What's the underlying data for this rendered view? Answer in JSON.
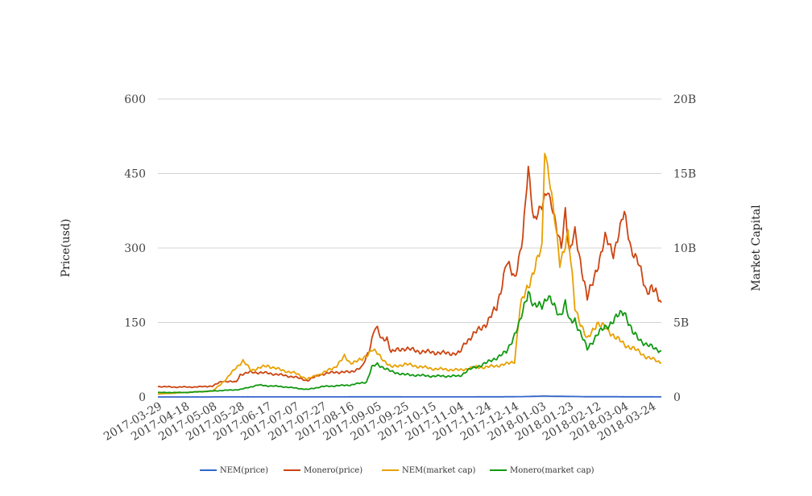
{
  "chart_data": {
    "type": "line",
    "ylabel": "Price(usd)",
    "y2label": "Market Capital",
    "ylim": [
      0,
      600
    ],
    "y2lim": [
      0,
      20000000000
    ],
    "yticks": [
      "0",
      "150",
      "300",
      "450",
      "600"
    ],
    "y2ticks": [
      "0",
      "5B",
      "10B",
      "15B",
      "20B"
    ],
    "xlim": [
      "2017-03-29",
      "2018-03-31"
    ],
    "xticks": [
      "2017-03-29",
      "2017-04-18",
      "2017-05-08",
      "2017-05-28",
      "2017-06-17",
      "2017-07-07",
      "2017-07-27",
      "2017-08-16",
      "2017-09-05",
      "2017-09-25",
      "2017-10-15",
      "2017-11-04",
      "2017-11-24",
      "2017-12-14",
      "2018-01-03",
      "2018-01-23",
      "2018-02-12",
      "2018-03-04",
      "2018-03-24"
    ],
    "grid": true,
    "legend_position": "bottom",
    "series": [
      {
        "name": "NEM(price)",
        "color": "#3366cc",
        "axis": "left",
        "points": [
          [
            "2017-03-29",
            0.01
          ],
          [
            "2017-05-01",
            0.02
          ],
          [
            "2017-05-20",
            0.2
          ],
          [
            "2017-06-01",
            0.25
          ],
          [
            "2017-07-01",
            0.18
          ],
          [
            "2017-08-01",
            0.2
          ],
          [
            "2017-08-31",
            0.3
          ],
          [
            "2017-09-30",
            0.22
          ],
          [
            "2017-11-01",
            0.18
          ],
          [
            "2017-12-01",
            0.3
          ],
          [
            "2017-12-20",
            0.7
          ],
          [
            "2018-01-04",
            1.8
          ],
          [
            "2018-01-12",
            1.4
          ],
          [
            "2018-01-20",
            1.2
          ],
          [
            "2018-02-05",
            0.5
          ],
          [
            "2018-02-25",
            0.45
          ],
          [
            "2018-03-15",
            0.3
          ],
          [
            "2018-03-31",
            0.22
          ]
        ]
      },
      {
        "name": "Monero(price)",
        "color": "#cc4411",
        "axis": "left",
        "points": [
          [
            "2017-03-29",
            21
          ],
          [
            "2017-04-10",
            20
          ],
          [
            "2017-04-25",
            20
          ],
          [
            "2017-05-08",
            22
          ],
          [
            "2017-05-15",
            32
          ],
          [
            "2017-05-25",
            30
          ],
          [
            "2017-05-28",
            45
          ],
          [
            "2017-06-05",
            50
          ],
          [
            "2017-06-17",
            48
          ],
          [
            "2017-06-25",
            45
          ],
          [
            "2017-07-07",
            40
          ],
          [
            "2017-07-16",
            33
          ],
          [
            "2017-07-25",
            45
          ],
          [
            "2017-08-05",
            50
          ],
          [
            "2017-08-16",
            50
          ],
          [
            "2017-08-25",
            60
          ],
          [
            "2017-08-30",
            95
          ],
          [
            "2017-09-03",
            140
          ],
          [
            "2017-09-05",
            135
          ],
          [
            "2017-09-08",
            115
          ],
          [
            "2017-09-12",
            120
          ],
          [
            "2017-09-15",
            90
          ],
          [
            "2017-09-20",
            95
          ],
          [
            "2017-09-25",
            98
          ],
          [
            "2017-10-05",
            92
          ],
          [
            "2017-10-15",
            90
          ],
          [
            "2017-10-25",
            88
          ],
          [
            "2017-11-04",
            88
          ],
          [
            "2017-11-08",
            110
          ],
          [
            "2017-11-15",
            128
          ],
          [
            "2017-11-24",
            150
          ],
          [
            "2017-12-01",
            180
          ],
          [
            "2017-12-08",
            270
          ],
          [
            "2017-12-14",
            240
          ],
          [
            "2017-12-20",
            320
          ],
          [
            "2017-12-24",
            460
          ],
          [
            "2017-12-28",
            360
          ],
          [
            "2018-01-03",
            380
          ],
          [
            "2018-01-07",
            420
          ],
          [
            "2018-01-10",
            390
          ],
          [
            "2018-01-14",
            330
          ],
          [
            "2018-01-17",
            300
          ],
          [
            "2018-01-20",
            380
          ],
          [
            "2018-01-23",
            290
          ],
          [
            "2018-01-27",
            330
          ],
          [
            "2018-02-01",
            260
          ],
          [
            "2018-02-05",
            200
          ],
          [
            "2018-02-08",
            220
          ],
          [
            "2018-02-12",
            260
          ],
          [
            "2018-02-18",
            320
          ],
          [
            "2018-02-24",
            290
          ],
          [
            "2018-03-04",
            370
          ],
          [
            "2018-03-09",
            300
          ],
          [
            "2018-03-14",
            270
          ],
          [
            "2018-03-20",
            215
          ],
          [
            "2018-03-24",
            220
          ],
          [
            "2018-03-31",
            190
          ]
        ]
      },
      {
        "name": "NEM(market cap)",
        "color": "#e8a000",
        "axis": "right",
        "points": [
          [
            "2017-03-29",
            200000000
          ],
          [
            "2017-04-18",
            300000000
          ],
          [
            "2017-05-08",
            400000000
          ],
          [
            "2017-05-18",
            1200000000
          ],
          [
            "2017-05-25",
            2000000000
          ],
          [
            "2017-05-30",
            2400000000
          ],
          [
            "2017-06-05",
            1800000000
          ],
          [
            "2017-06-17",
            2100000000
          ],
          [
            "2017-06-27",
            1800000000
          ],
          [
            "2017-07-07",
            1600000000
          ],
          [
            "2017-07-16",
            1200000000
          ],
          [
            "2017-07-27",
            1600000000
          ],
          [
            "2017-08-05",
            2000000000
          ],
          [
            "2017-08-12",
            2700000000
          ],
          [
            "2017-08-16",
            2300000000
          ],
          [
            "2017-08-25",
            2500000000
          ],
          [
            "2017-09-01",
            3200000000
          ],
          [
            "2017-09-05",
            2900000000
          ],
          [
            "2017-09-15",
            2000000000
          ],
          [
            "2017-09-25",
            2200000000
          ],
          [
            "2017-10-15",
            1900000000
          ],
          [
            "2017-11-04",
            1800000000
          ],
          [
            "2017-11-15",
            2000000000
          ],
          [
            "2017-11-24",
            2000000000
          ],
          [
            "2017-12-08",
            2200000000
          ],
          [
            "2017-12-14",
            2400000000
          ],
          [
            "2017-12-18",
            6000000000
          ],
          [
            "2017-12-24",
            7500000000
          ],
          [
            "2017-12-30",
            9000000000
          ],
          [
            "2018-01-03",
            10000000000
          ],
          [
            "2018-01-05",
            16700000000
          ],
          [
            "2018-01-08",
            15000000000
          ],
          [
            "2018-01-12",
            12000000000
          ],
          [
            "2018-01-16",
            9000000000
          ],
          [
            "2018-01-22",
            11000000000
          ],
          [
            "2018-01-27",
            6000000000
          ],
          [
            "2018-02-05",
            3800000000
          ],
          [
            "2018-02-12",
            5000000000
          ],
          [
            "2018-02-20",
            4500000000
          ],
          [
            "2018-03-04",
            3500000000
          ],
          [
            "2018-03-10",
            3300000000
          ],
          [
            "2018-03-20",
            2700000000
          ],
          [
            "2018-03-31",
            2300000000
          ]
        ]
      },
      {
        "name": "Monero(market cap)",
        "color": "#119911",
        "axis": "right",
        "points": [
          [
            "2017-03-29",
            300000000
          ],
          [
            "2017-04-18",
            300000000
          ],
          [
            "2017-05-08",
            400000000
          ],
          [
            "2017-05-28",
            500000000
          ],
          [
            "2017-06-10",
            800000000
          ],
          [
            "2017-06-17",
            750000000
          ],
          [
            "2017-06-27",
            700000000
          ],
          [
            "2017-07-07",
            600000000
          ],
          [
            "2017-07-16",
            500000000
          ],
          [
            "2017-07-27",
            700000000
          ],
          [
            "2017-08-16",
            800000000
          ],
          [
            "2017-08-28",
            1000000000
          ],
          [
            "2017-09-01",
            2000000000
          ],
          [
            "2017-09-05",
            2200000000
          ],
          [
            "2017-09-15",
            1700000000
          ],
          [
            "2017-09-25",
            1500000000
          ],
          [
            "2017-10-15",
            1400000000
          ],
          [
            "2017-11-04",
            1400000000
          ],
          [
            "2017-11-10",
            1800000000
          ],
          [
            "2017-11-24",
            2300000000
          ],
          [
            "2017-12-08",
            3000000000
          ],
          [
            "2017-12-14",
            4200000000
          ],
          [
            "2017-12-18",
            5000000000
          ],
          [
            "2017-12-24",
            7200000000
          ],
          [
            "2017-12-28",
            6000000000
          ],
          [
            "2018-01-03",
            6200000000
          ],
          [
            "2018-01-07",
            6800000000
          ],
          [
            "2018-01-12",
            6000000000
          ],
          [
            "2018-01-16",
            5500000000
          ],
          [
            "2018-01-20",
            6300000000
          ],
          [
            "2018-01-23",
            5000000000
          ],
          [
            "2018-01-27",
            5200000000
          ],
          [
            "2018-02-05",
            3200000000
          ],
          [
            "2018-02-12",
            4200000000
          ],
          [
            "2018-02-20",
            4800000000
          ],
          [
            "2018-03-04",
            5800000000
          ],
          [
            "2018-03-10",
            4300000000
          ],
          [
            "2018-03-15",
            3900000000
          ],
          [
            "2018-03-20",
            3500000000
          ],
          [
            "2018-03-31",
            3100000000
          ]
        ]
      }
    ]
  }
}
